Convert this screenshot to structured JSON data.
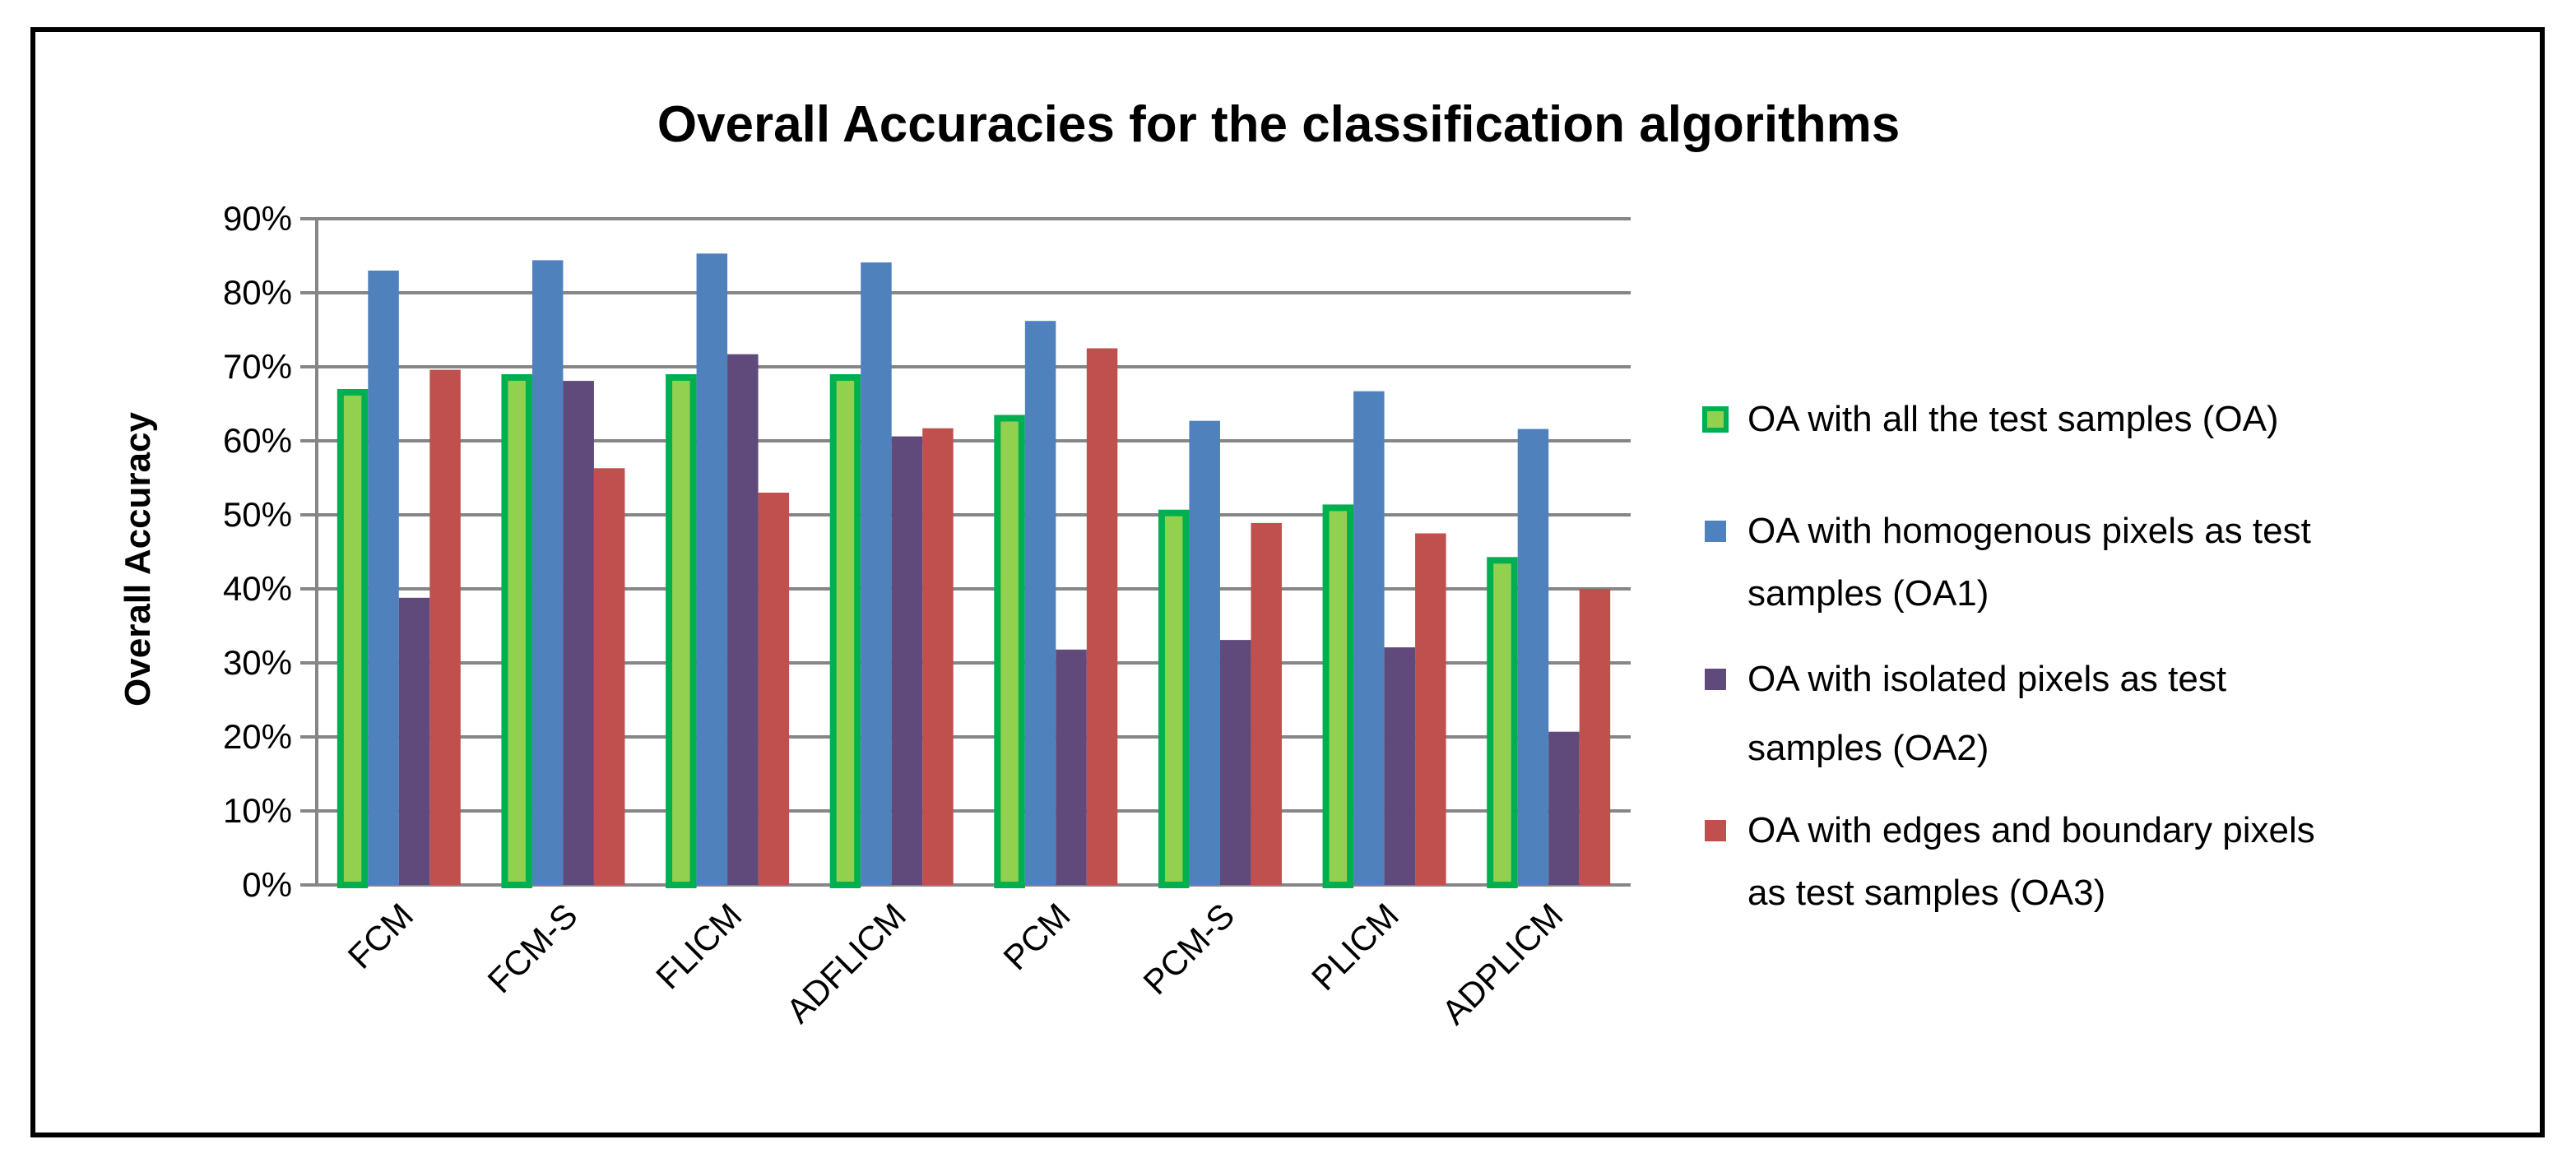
{
  "chart_data": {
    "type": "bar",
    "title": "Overall Accuracies for the classification algorithms",
    "xlabel": "",
    "ylabel": "Overall Accuracy",
    "ylim": [
      0,
      90
    ],
    "yticks": [
      "0%",
      "10%",
      "20%",
      "30%",
      "40%",
      "50%",
      "60%",
      "70%",
      "80%",
      "90%"
    ],
    "grid": true,
    "legend_position": "right",
    "categories": [
      "FCM",
      "FCM-S",
      "FLICM",
      "ADFLICM",
      "PCM",
      "PCM-S",
      "PLICM",
      "ADPLICM"
    ],
    "series": [
      {
        "name": "OA with all the test samples (OA)",
        "legend_lines": [
          "OA with all the test samples (OA)"
        ],
        "color": "#92D050",
        "stroke": "#00B050",
        "values": [
          67,
          69,
          69,
          69,
          63.5,
          50.7,
          51.4,
          44.3
        ]
      },
      {
        "name": "OA with homogenous pixels as test samples (OA1)",
        "legend_lines": [
          "OA with homogenous pixels as test",
          "samples (OA1)"
        ],
        "color": "#4F81BD",
        "values": [
          83,
          84.4,
          85.3,
          84.1,
          76.2,
          62.7,
          66.7,
          61.6
        ]
      },
      {
        "name": "OA with isolated pixels as test samples (OA2)",
        "legend_lines": [
          "OA with isolated pixels as test",
          "samples (OA2)"
        ],
        "color": "#604A7B",
        "values": [
          38.8,
          68.1,
          71.7,
          60.6,
          31.8,
          33.1,
          32.1,
          20.7
        ]
      },
      {
        "name": "OA with edges and boundary pixels as test samples (OA3)",
        "legend_lines": [
          "OA with edges and boundary pixels",
          "as test samples (OA3)"
        ],
        "color": "#C0504D",
        "values": [
          69.6,
          56.3,
          53,
          61.7,
          72.5,
          48.9,
          47.5,
          40
        ]
      }
    ]
  }
}
